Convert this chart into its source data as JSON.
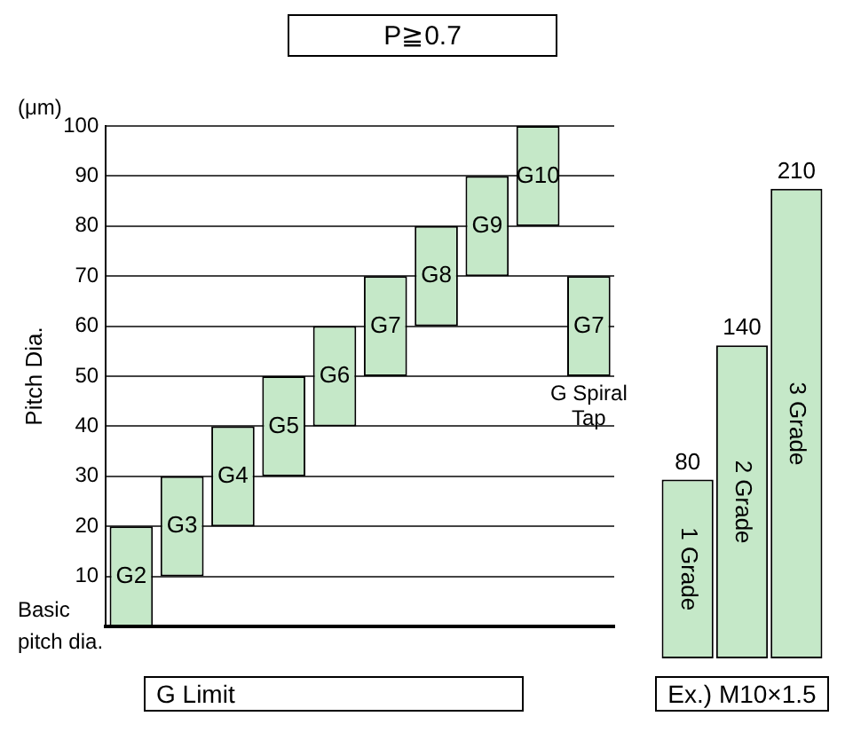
{
  "chart_data": [
    {
      "type": "bar",
      "title": "P≧0.7",
      "ylabel": "Pitch Dia.",
      "xlabel": "G Limit",
      "categories": [
        "G2",
        "G3",
        "G4",
        "G5",
        "G6",
        "G7",
        "G8",
        "G9",
        "G10",
        "G7"
      ],
      "base": [
        0,
        10,
        20,
        30,
        40,
        50,
        60,
        70,
        80,
        50
      ],
      "values": [
        20,
        20,
        20,
        20,
        20,
        20,
        20,
        20,
        20,
        20
      ],
      "color": "#c5e8c8",
      "ylim": [
        0,
        100
      ],
      "yticks": [
        10,
        20,
        30,
        40,
        50,
        60,
        70,
        80,
        90,
        100
      ],
      "grid": "y",
      "tick_labels": "y",
      "annotations": [
        "(μm)",
        "G Spiral Tap",
        "Basic pitch dia."
      ]
    },
    {
      "type": "bar",
      "xlabel": "Ex.) M10×1.5",
      "categories": [
        "1 Grade",
        "2 Grade",
        "3 Grade"
      ],
      "values": [
        80,
        140,
        210
      ],
      "color": "#c5e8c8",
      "data_labels": true,
      "tick_labels": false
    }
  ]
}
